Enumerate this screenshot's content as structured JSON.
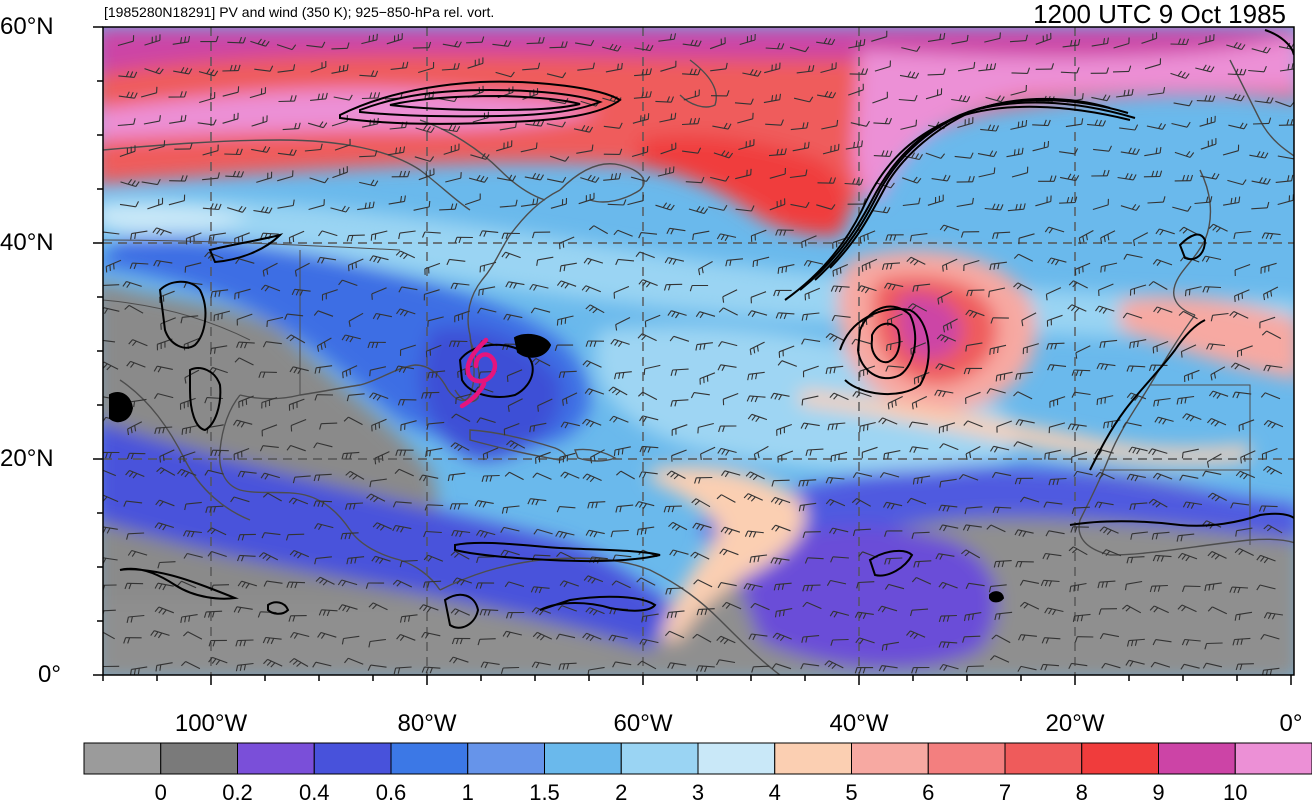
{
  "header": {
    "title_left": "[1985280N18291] PV and wind (350 K); 925−850-hPa rel. vort.",
    "title_right": "1200 UTC 9 Oct 1985"
  },
  "axes": {
    "lat_labels": [
      "60°N",
      "40°N",
      "20°N",
      "0°"
    ],
    "lon_labels": [
      "100°W",
      "80°W",
      "60°W",
      "40°W",
      "20°W",
      "0°"
    ]
  },
  "colorbar": {
    "labels": [
      "0",
      "0.2",
      "0.4",
      "0.6",
      "1",
      "1.5",
      "2",
      "3",
      "4",
      "5",
      "6",
      "7",
      "8",
      "9",
      "10"
    ],
    "colors": [
      "#9b9b9b",
      "#7a7a7a",
      "#7a4fd9",
      "#4852db",
      "#3c78e6",
      "#6694ea",
      "#6ab9ec",
      "#9ad4f3",
      "#c9e8f8",
      "#fbcfb2",
      "#f7a9a2",
      "#f37f7f",
      "#ef5b5b",
      "#f03c3c",
      "#cc44a6",
      "#ec90d6"
    ]
  },
  "colors": {
    "storm_track": "#e6147d",
    "contour": "#000000",
    "coastline": "#4d4d4d",
    "gridline": "#555555"
  }
}
